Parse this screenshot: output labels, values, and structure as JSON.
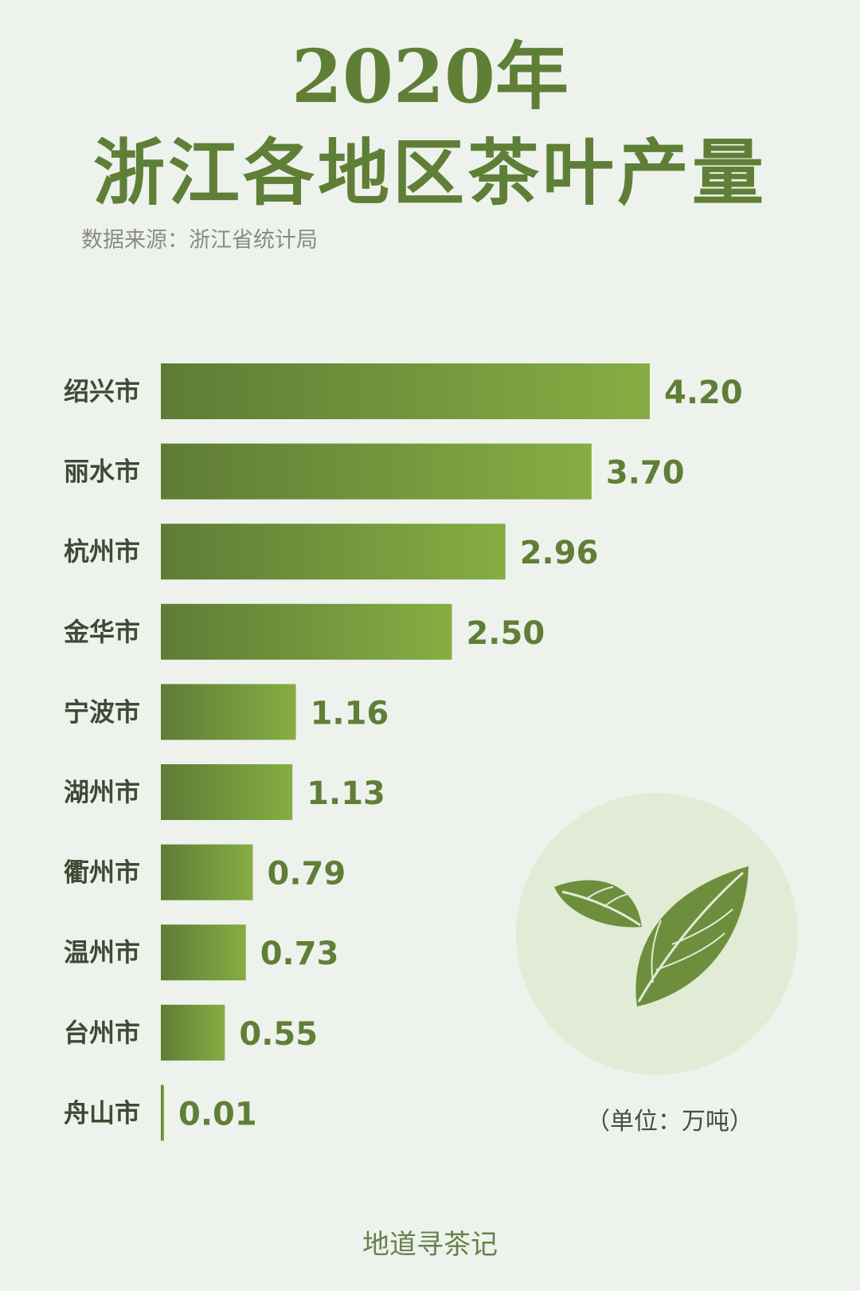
{
  "title_year": "2020年",
  "title_main": "浙江各地区茶叶产量",
  "source": "数据来源：浙江省统计局",
  "unit": "（单位：万吨）",
  "footer": "地道寻茶记",
  "colors": {
    "background": "#eef2ed",
    "title": "#5f7f37",
    "bar_dark": "#5e7c36",
    "bar_light": "#86ad43",
    "emblem_circle": "#e1ebd6",
    "leaf": "#6d8f3d"
  },
  "chart_data": {
    "type": "bar",
    "orientation": "horizontal",
    "title": "2020年浙江各地区茶叶产量",
    "categories": [
      "绍兴市",
      "丽水市",
      "杭州市",
      "金华市",
      "宁波市",
      "湖州市",
      "衢州市",
      "温州市",
      "台州市",
      "舟山市"
    ],
    "values": [
      4.2,
      3.7,
      2.96,
      2.5,
      1.16,
      1.13,
      0.79,
      0.73,
      0.55,
      0.01
    ],
    "value_labels": [
      "4.20",
      "3.70",
      "2.96",
      "2.50",
      "1.16",
      "1.13",
      "0.79",
      "0.73",
      "0.55",
      "0.01"
    ],
    "unit": "万吨",
    "xlim": [
      0,
      4.2
    ],
    "grid": false,
    "legend": "none"
  }
}
